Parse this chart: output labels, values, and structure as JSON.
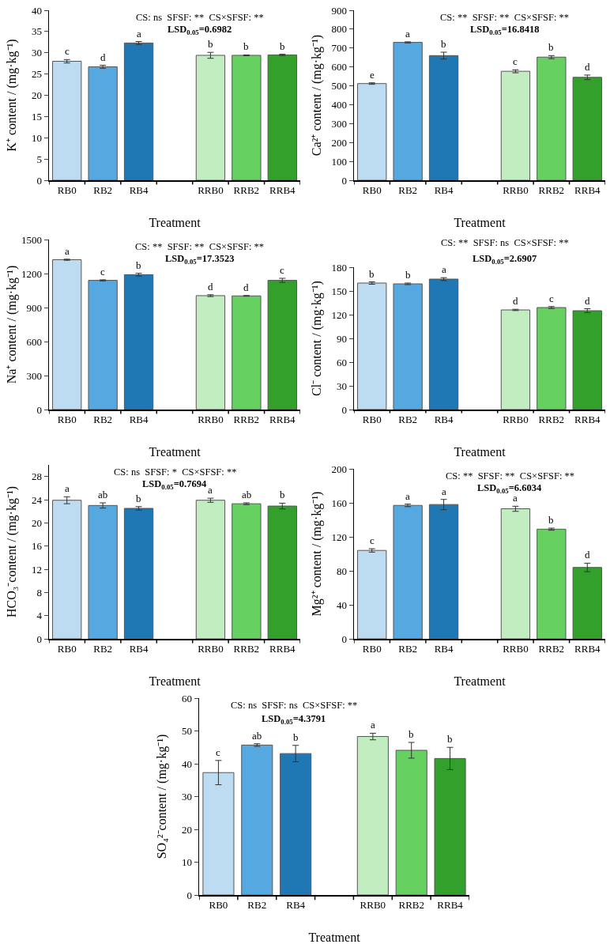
{
  "chart_data": [
    {
      "type": "bar",
      "categories": [
        "RB0",
        "RB2",
        "RB4",
        null,
        "RRB0",
        "RRB2",
        "RRB4"
      ],
      "values": [
        28.0,
        26.7,
        32.3,
        null,
        29.4,
        29.4,
        29.5
      ],
      "errors": [
        0.4,
        0.35,
        0.35,
        null,
        0.7,
        0.1,
        0.15
      ],
      "value_labels": [
        "c",
        "d",
        "a",
        null,
        "b",
        "b",
        "b"
      ],
      "colors": [
        "#bddcf2",
        "#55a8e0",
        "#1f77b4",
        "#ffffff",
        "#c1edc0",
        "#66d160",
        "#33a02c"
      ],
      "ylim": [
        0,
        40
      ],
      "yticks": [
        0,
        5,
        10,
        15,
        20,
        25,
        30,
        35,
        40
      ],
      "xlabel": "Treatment",
      "ylabel": "K⁺ content / (mg·kg⁻¹)",
      "annotations": [
        "CS: ns  SFSF: **  CS×SFSF: **",
        "LSD$_{0.05}$=0.6982"
      ]
    },
    {
      "type": "bar",
      "categories": [
        "RB0",
        "RB2",
        "RB4",
        null,
        "RRB0",
        "RRB2",
        "RRB4"
      ],
      "values": [
        512,
        730,
        660,
        null,
        577,
        652,
        545
      ],
      "errors": [
        4,
        3,
        18,
        null,
        8,
        8,
        12
      ],
      "value_labels": [
        "e",
        "a",
        "b",
        null,
        "c",
        "b",
        "d"
      ],
      "colors": [
        "#bddcf2",
        "#55a8e0",
        "#1f77b4",
        "#ffffff",
        "#c1edc0",
        "#66d160",
        "#33a02c"
      ],
      "ylim": [
        0,
        900
      ],
      "yticks": [
        0,
        100,
        200,
        300,
        400,
        500,
        600,
        700,
        800,
        900
      ],
      "xlabel": "Treatment",
      "ylabel": "Ca²⁺ content / (mg·kg⁻¹)",
      "annotations": [
        "CS: **  SFSF: **  CS×SFSF: **",
        "LSD$_{0.05}$=16.8418"
      ]
    },
    {
      "type": "bar",
      "categories": [
        "RB0",
        "RB2",
        "RB4",
        null,
        "RRB0",
        "RRB2",
        "RRB4"
      ],
      "values": [
        1322,
        1140,
        1190,
        null,
        1005,
        1003,
        1140
      ],
      "errors": [
        5,
        5,
        12,
        null,
        8,
        3,
        18
      ],
      "value_labels": [
        "a",
        "c",
        "b",
        null,
        "d",
        "d",
        "c"
      ],
      "colors": [
        "#bddcf2",
        "#55a8e0",
        "#1f77b4",
        "#ffffff",
        "#c1edc0",
        "#66d160",
        "#33a02c"
      ],
      "ylim": [
        0,
        1500
      ],
      "yticks": [
        0,
        300,
        600,
        900,
        1200,
        1500
      ],
      "xlabel": "Treatment",
      "ylabel": "Na⁺ content / (mg·kg⁻¹)",
      "annotations": [
        "CS: **  SFSF: **  CS×SFSF: **",
        "LSD$_{0.05}$=17.3523"
      ]
    },
    {
      "type": "bar",
      "categories": [
        "RB0",
        "RB2",
        "RB4",
        null,
        "RRB0",
        "RRB2",
        "RRB4"
      ],
      "values": [
        160,
        159,
        165,
        null,
        126,
        129,
        125
      ],
      "errors": [
        1.5,
        1,
        1.8,
        null,
        0.8,
        1.2,
        2.5
      ],
      "value_labels": [
        "b",
        "b",
        "a",
        null,
        "d",
        "c",
        "d"
      ],
      "colors": [
        "#bddcf2",
        "#55a8e0",
        "#1f77b4",
        "#ffffff",
        "#c1edc0",
        "#66d160",
        "#33a02c"
      ],
      "ylim": [
        0,
        180
      ],
      "yticks": [
        0,
        30,
        60,
        90,
        120,
        150,
        180
      ],
      "xlabel": "Treatment",
      "ylabel": "Cl⁻ content / (mg·kg⁻¹)",
      "annotations": [
        "CS: **  SFSF: ns  CS×SFSF: **",
        "LSD$_{0.05}$=2.6907"
      ]
    },
    {
      "type": "bar",
      "categories": [
        "RB0",
        "RB2",
        "RB4",
        null,
        "RRB0",
        "RRB2",
        "RRB4"
      ],
      "values": [
        23.9,
        23.0,
        22.5,
        null,
        23.9,
        23.3,
        22.9
      ],
      "errors": [
        0.6,
        0.45,
        0.3,
        null,
        0.35,
        0.15,
        0.5
      ],
      "value_labels": [
        "a",
        "ab",
        "b",
        null,
        "a",
        "ab",
        "b"
      ],
      "colors": [
        "#bddcf2",
        "#55a8e0",
        "#1f77b4",
        "#ffffff",
        "#c1edc0",
        "#66d160",
        "#33a02c"
      ],
      "ylim": [
        0,
        30
      ],
      "yticks": [
        0,
        4,
        8,
        12,
        16,
        20,
        24,
        28
      ],
      "xlabel": "Treatment",
      "ylabel": "HCO₃⁻content / (mg·kg⁻¹)",
      "annotations": [
        "CS: ns  SFSF: *  CS×SFSF: **",
        "LSD$_{0.05}$=0.7694"
      ]
    },
    {
      "type": "bar",
      "categories": [
        "RB0",
        "RB2",
        "RB4",
        null,
        "RRB0",
        "RRB2",
        "RRB4"
      ],
      "values": [
        104,
        157,
        158,
        null,
        153,
        129,
        84
      ],
      "errors": [
        2,
        1.5,
        6,
        null,
        3,
        1.2,
        5
      ],
      "value_labels": [
        "c",
        "a",
        "a",
        null,
        "a",
        "b",
        "d"
      ],
      "colors": [
        "#bddcf2",
        "#55a8e0",
        "#1f77b4",
        "#ffffff",
        "#c1edc0",
        "#66d160",
        "#33a02c"
      ],
      "ylim": [
        0,
        200
      ],
      "yticks": [
        0,
        40,
        80,
        120,
        160,
        200
      ],
      "xlabel": "Treatment",
      "ylabel": "Mg²⁺ content / (mg·kg⁻¹)",
      "annotations": [
        "CS: **  SFSF: **  CS×SFSF: **",
        "LSD$_{0.05}$=6.6034"
      ]
    },
    {
      "type": "bar",
      "categories": [
        "RB0",
        "RB2",
        "RB4",
        null,
        "RRB0",
        "RRB2",
        "RRB4"
      ],
      "values": [
        37.3,
        45.7,
        43.1,
        null,
        48.3,
        44.1,
        41.6
      ],
      "errors": [
        3.7,
        0.4,
        2.5,
        null,
        1,
        2.4,
        3.4
      ],
      "value_labels": [
        "c",
        "ab",
        "b",
        null,
        "a",
        "b",
        "b"
      ],
      "colors": [
        "#bddcf2",
        "#55a8e0",
        "#1f77b4",
        "#ffffff",
        "#c1edc0",
        "#66d160",
        "#33a02c"
      ],
      "ylim": [
        0,
        60
      ],
      "yticks": [
        0,
        10,
        20,
        30,
        40,
        50,
        60
      ],
      "xlabel": "Treatment",
      "ylabel": "SO₄²⁻content / (mg·kg⁻¹)",
      "annotations": [
        "CS: ns  SFSF: ns  CS×SFSF: **",
        "LSD$_{0.05}$=4.3791"
      ]
    }
  ]
}
